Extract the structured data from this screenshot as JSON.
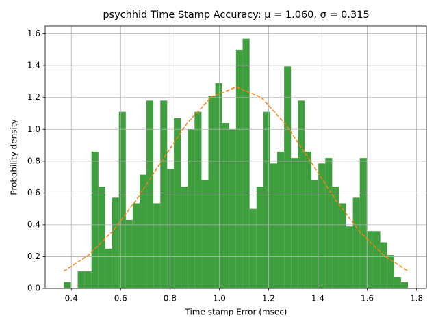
{
  "chart_data": {
    "type": "histogram",
    "title": "psychhid Time Stamp Accuracy: μ = 1.060, σ = 0.315",
    "xlabel": "Time stamp Error (msec)",
    "ylabel": "Probability density",
    "color": "#3f9f3f",
    "grid": true,
    "bins": [
      0.37,
      0.398,
      0.426,
      0.454,
      0.482,
      0.51,
      0.537,
      0.565,
      0.593,
      0.621,
      0.649,
      0.677,
      0.705,
      0.733,
      0.761,
      0.789,
      0.816,
      0.844,
      0.872,
      0.9,
      0.928,
      0.956,
      0.984,
      1.012,
      1.04,
      1.068,
      1.095,
      1.123,
      1.151,
      1.179,
      1.207,
      1.235,
      1.263,
      1.291,
      1.319,
      1.347,
      1.374,
      1.402,
      1.43,
      1.458,
      1.486,
      1.514,
      1.542,
      1.57,
      1.598,
      1.626,
      1.653,
      1.681,
      1.709,
      1.737,
      1.765
    ],
    "values": [
      0.04,
      0,
      0.107,
      0.107,
      0.86,
      0.64,
      0.25,
      0.57,
      1.11,
      0.43,
      0.535,
      0.715,
      1.18,
      0.535,
      1.18,
      0.75,
      1.07,
      0.64,
      1.0,
      1.11,
      0.68,
      1.21,
      1.29,
      1.04,
      1.0,
      1.5,
      1.57,
      0.5,
      0.64,
      1.11,
      0.785,
      0.86,
      1.395,
      0.82,
      1.18,
      0.86,
      0.68,
      0.785,
      0.82,
      0.64,
      0.535,
      0.39,
      0.57,
      0.82,
      0.36,
      0.36,
      0.29,
      0.21,
      0.07,
      0.04
    ],
    "curve": {
      "color": "#ff7f0e",
      "x": [
        0.37,
        0.47,
        0.57,
        0.67,
        0.77,
        0.87,
        0.97,
        1.07,
        1.17,
        1.27,
        1.37,
        1.47,
        1.57,
        1.67,
        1.765
      ],
      "values": [
        0.109,
        0.209,
        0.363,
        0.57,
        0.809,
        1.039,
        1.206,
        1.266,
        1.201,
        1.031,
        0.8,
        0.561,
        0.356,
        0.204,
        0.11
      ]
    },
    "xlim": [
      0.294,
      1.84
    ],
    "ylim": [
      0,
      1.65
    ],
    "xticks": [
      0.4,
      0.6,
      0.8,
      {
        "value": 1,
        "label": "1.0"
      },
      1.2,
      1.4,
      1.6,
      1.8
    ],
    "yticks": [
      {
        "value": 0,
        "label": "0.0"
      },
      0.2,
      0.4,
      0.6,
      0.8,
      {
        "value": 1,
        "label": "1.0"
      },
      1.2,
      1.4,
      1.6
    ]
  }
}
